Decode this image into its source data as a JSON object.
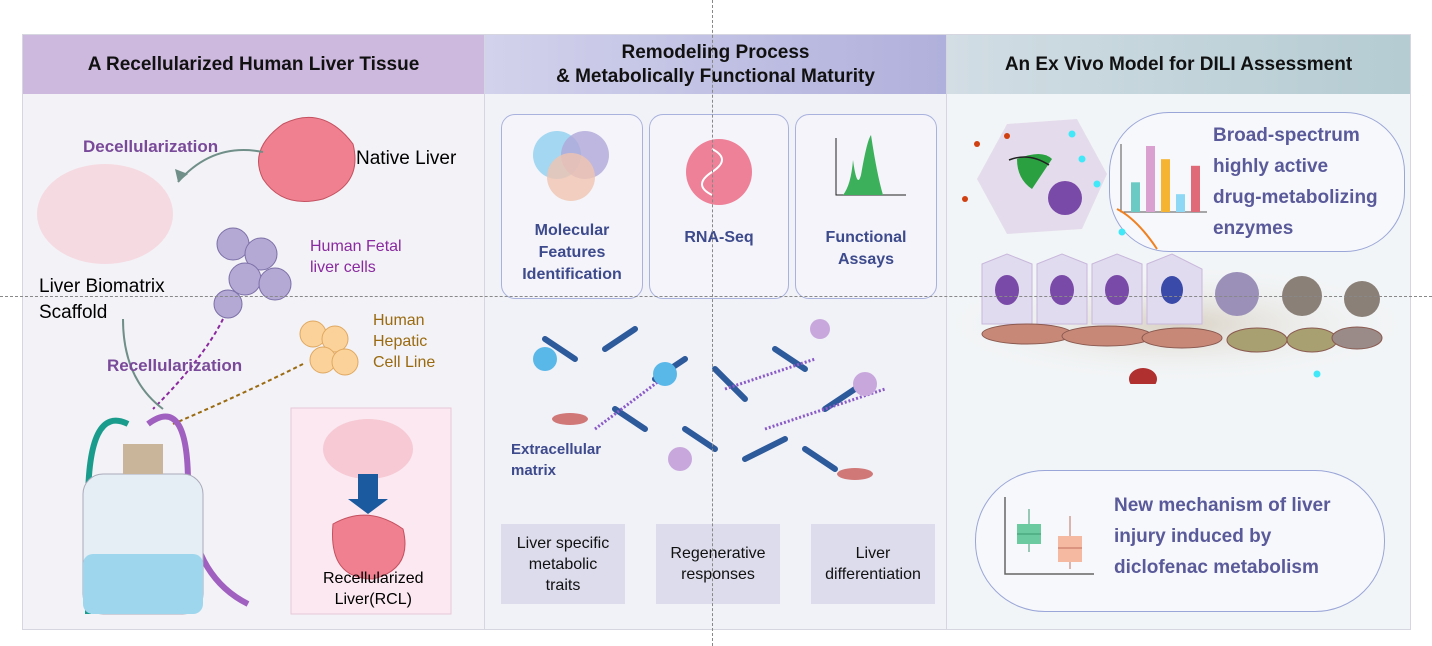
{
  "panels": [
    {
      "title": "A Recellularized Human Liver Tissue",
      "header_color": "#cdb8de",
      "labels": {
        "decell": "Decellularization",
        "native": "Native Liver",
        "fetal": "Human Fetal\nliver cells",
        "scaffold": "Liver Biomatrix\nScaffold",
        "recell": "Recellularization",
        "hepatic": "Human\nHepatic\nCell Line",
        "rcl": "Recellularized\nLiver(RCL)"
      }
    },
    {
      "title_line1": "Remodeling Process",
      "title_line2": "& Metabolically Functional Maturity",
      "header_color": "#b9b9de",
      "cards": [
        "Molecular\nFeatures\nIdentification",
        "RNA-Seq",
        "Functional\nAssays"
      ],
      "ecm": "Extracellular\nmatrix",
      "traits": [
        "Liver specific\nmetabolic\ntraits",
        "Regenerative\nresponses",
        "Liver\ndifferentiation"
      ]
    },
    {
      "title": "An Ex Vivo Model for DILI Assessment",
      "header_color": "#bdd0d8",
      "bubble1": [
        "Broad-spectrum",
        "highly active",
        "drug-metabolizing",
        "enzymes"
      ],
      "bubble2": [
        "New mechanism of liver",
        "injury induced by",
        "diclofenac metabolism"
      ],
      "bar_colors": [
        "#6ccac4",
        "#d9a0d0",
        "#f5b431",
        "#8ed8f5",
        "#e06a78"
      ],
      "bar_values": [
        0.45,
        1.0,
        0.8,
        0.27,
        0.7
      ]
    }
  ]
}
